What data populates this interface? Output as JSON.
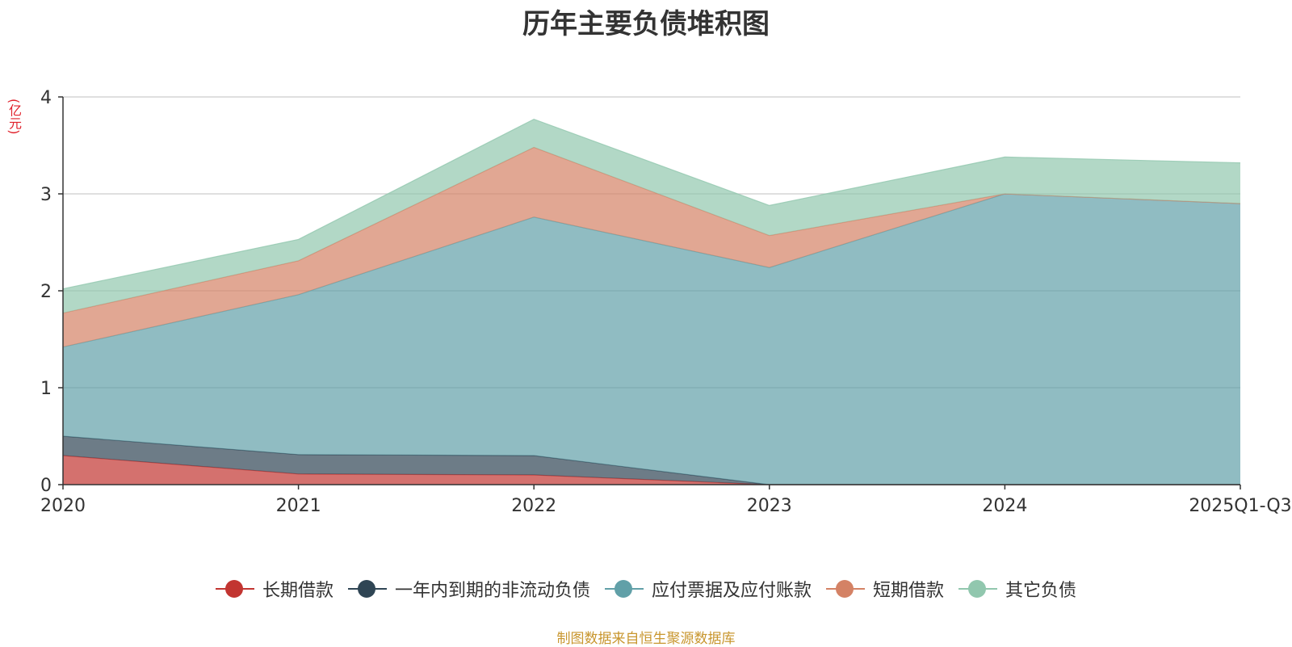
{
  "chart_data": {
    "type": "area",
    "stacked": true,
    "title": "历年主要负债堆积图",
    "ylabel": "(亿元)",
    "xlabel": "",
    "ylim": [
      0,
      4
    ],
    "yticks": [
      0,
      1,
      2,
      3,
      4
    ],
    "categories": [
      "2020",
      "2021",
      "2022",
      "2023",
      "2024",
      "2025Q1-Q3"
    ],
    "series": [
      {
        "name": "长期借款",
        "color": "#c23531",
        "values": [
          0.3,
          0.11,
          0.1,
          0.0,
          0.0,
          0.0
        ]
      },
      {
        "name": "一年内到期的非流动负债",
        "color": "#2f4554",
        "values": [
          0.2,
          0.2,
          0.2,
          0.0,
          0.0,
          0.0
        ]
      },
      {
        "name": "应付票据及应付账款",
        "color": "#61a0a8",
        "values": [
          0.92,
          1.65,
          2.46,
          2.24,
          3.0,
          2.9
        ]
      },
      {
        "name": "短期借款",
        "color": "#d48265",
        "values": [
          0.35,
          0.35,
          0.72,
          0.33,
          0.0,
          0.0
        ]
      },
      {
        "name": "其它负债",
        "color": "#91c7ae",
        "values": [
          0.25,
          0.22,
          0.29,
          0.31,
          0.38,
          0.42
        ]
      }
    ],
    "grid": true,
    "legend_position": "bottom-center",
    "source_note": "制图数据来自恒生聚源数据库"
  }
}
